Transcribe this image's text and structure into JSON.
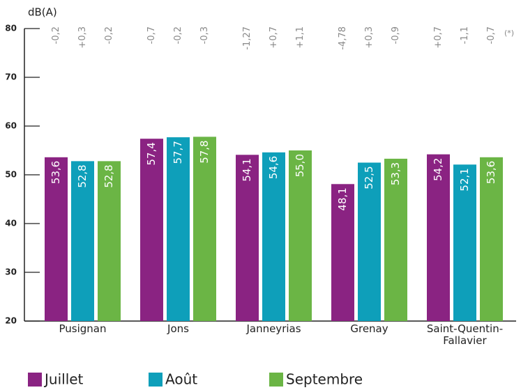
{
  "chart_data": {
    "type": "bar",
    "y_label": "dB(A)",
    "annotation": "(*)",
    "categories": [
      "Pusignan",
      "Jons",
      "Janneyrias",
      "Grenay",
      "Saint-Quentin-Fallavier"
    ],
    "series": [
      {
        "name": "Juillet",
        "color": "#8a2382",
        "values": [
          53.6,
          57.4,
          54.1,
          48.1,
          54.2
        ],
        "value_labels": [
          "53,6",
          "57,4",
          "54,1",
          "48,1",
          "54,2"
        ],
        "changes": [
          "-0,2",
          "-0,7",
          "-1,27",
          "-4,78",
          "+0,7"
        ]
      },
      {
        "name": "Août",
        "color": "#0e9fba",
        "values": [
          52.8,
          57.7,
          54.6,
          52.5,
          52.1
        ],
        "value_labels": [
          "52,8",
          "57,7",
          "54,6",
          "52,5",
          "52,1"
        ],
        "changes": [
          "+0,3",
          "-0,2",
          "+0,7",
          "+0,3",
          "-1,1"
        ]
      },
      {
        "name": "Septembre",
        "color": "#6bb545",
        "values": [
          52.8,
          57.8,
          55.0,
          53.3,
          53.6
        ],
        "value_labels": [
          "52,8",
          "57,8",
          "55,0",
          "53,3",
          "53,6"
        ],
        "changes": [
          "-0,2",
          "-0,3",
          "+1,1",
          "-0,9",
          "-0,7"
        ]
      }
    ],
    "ylim": [
      20,
      80
    ],
    "yticks": [
      20,
      30,
      40,
      50,
      60,
      70,
      80
    ],
    "grid": false,
    "legend": "bottom"
  }
}
